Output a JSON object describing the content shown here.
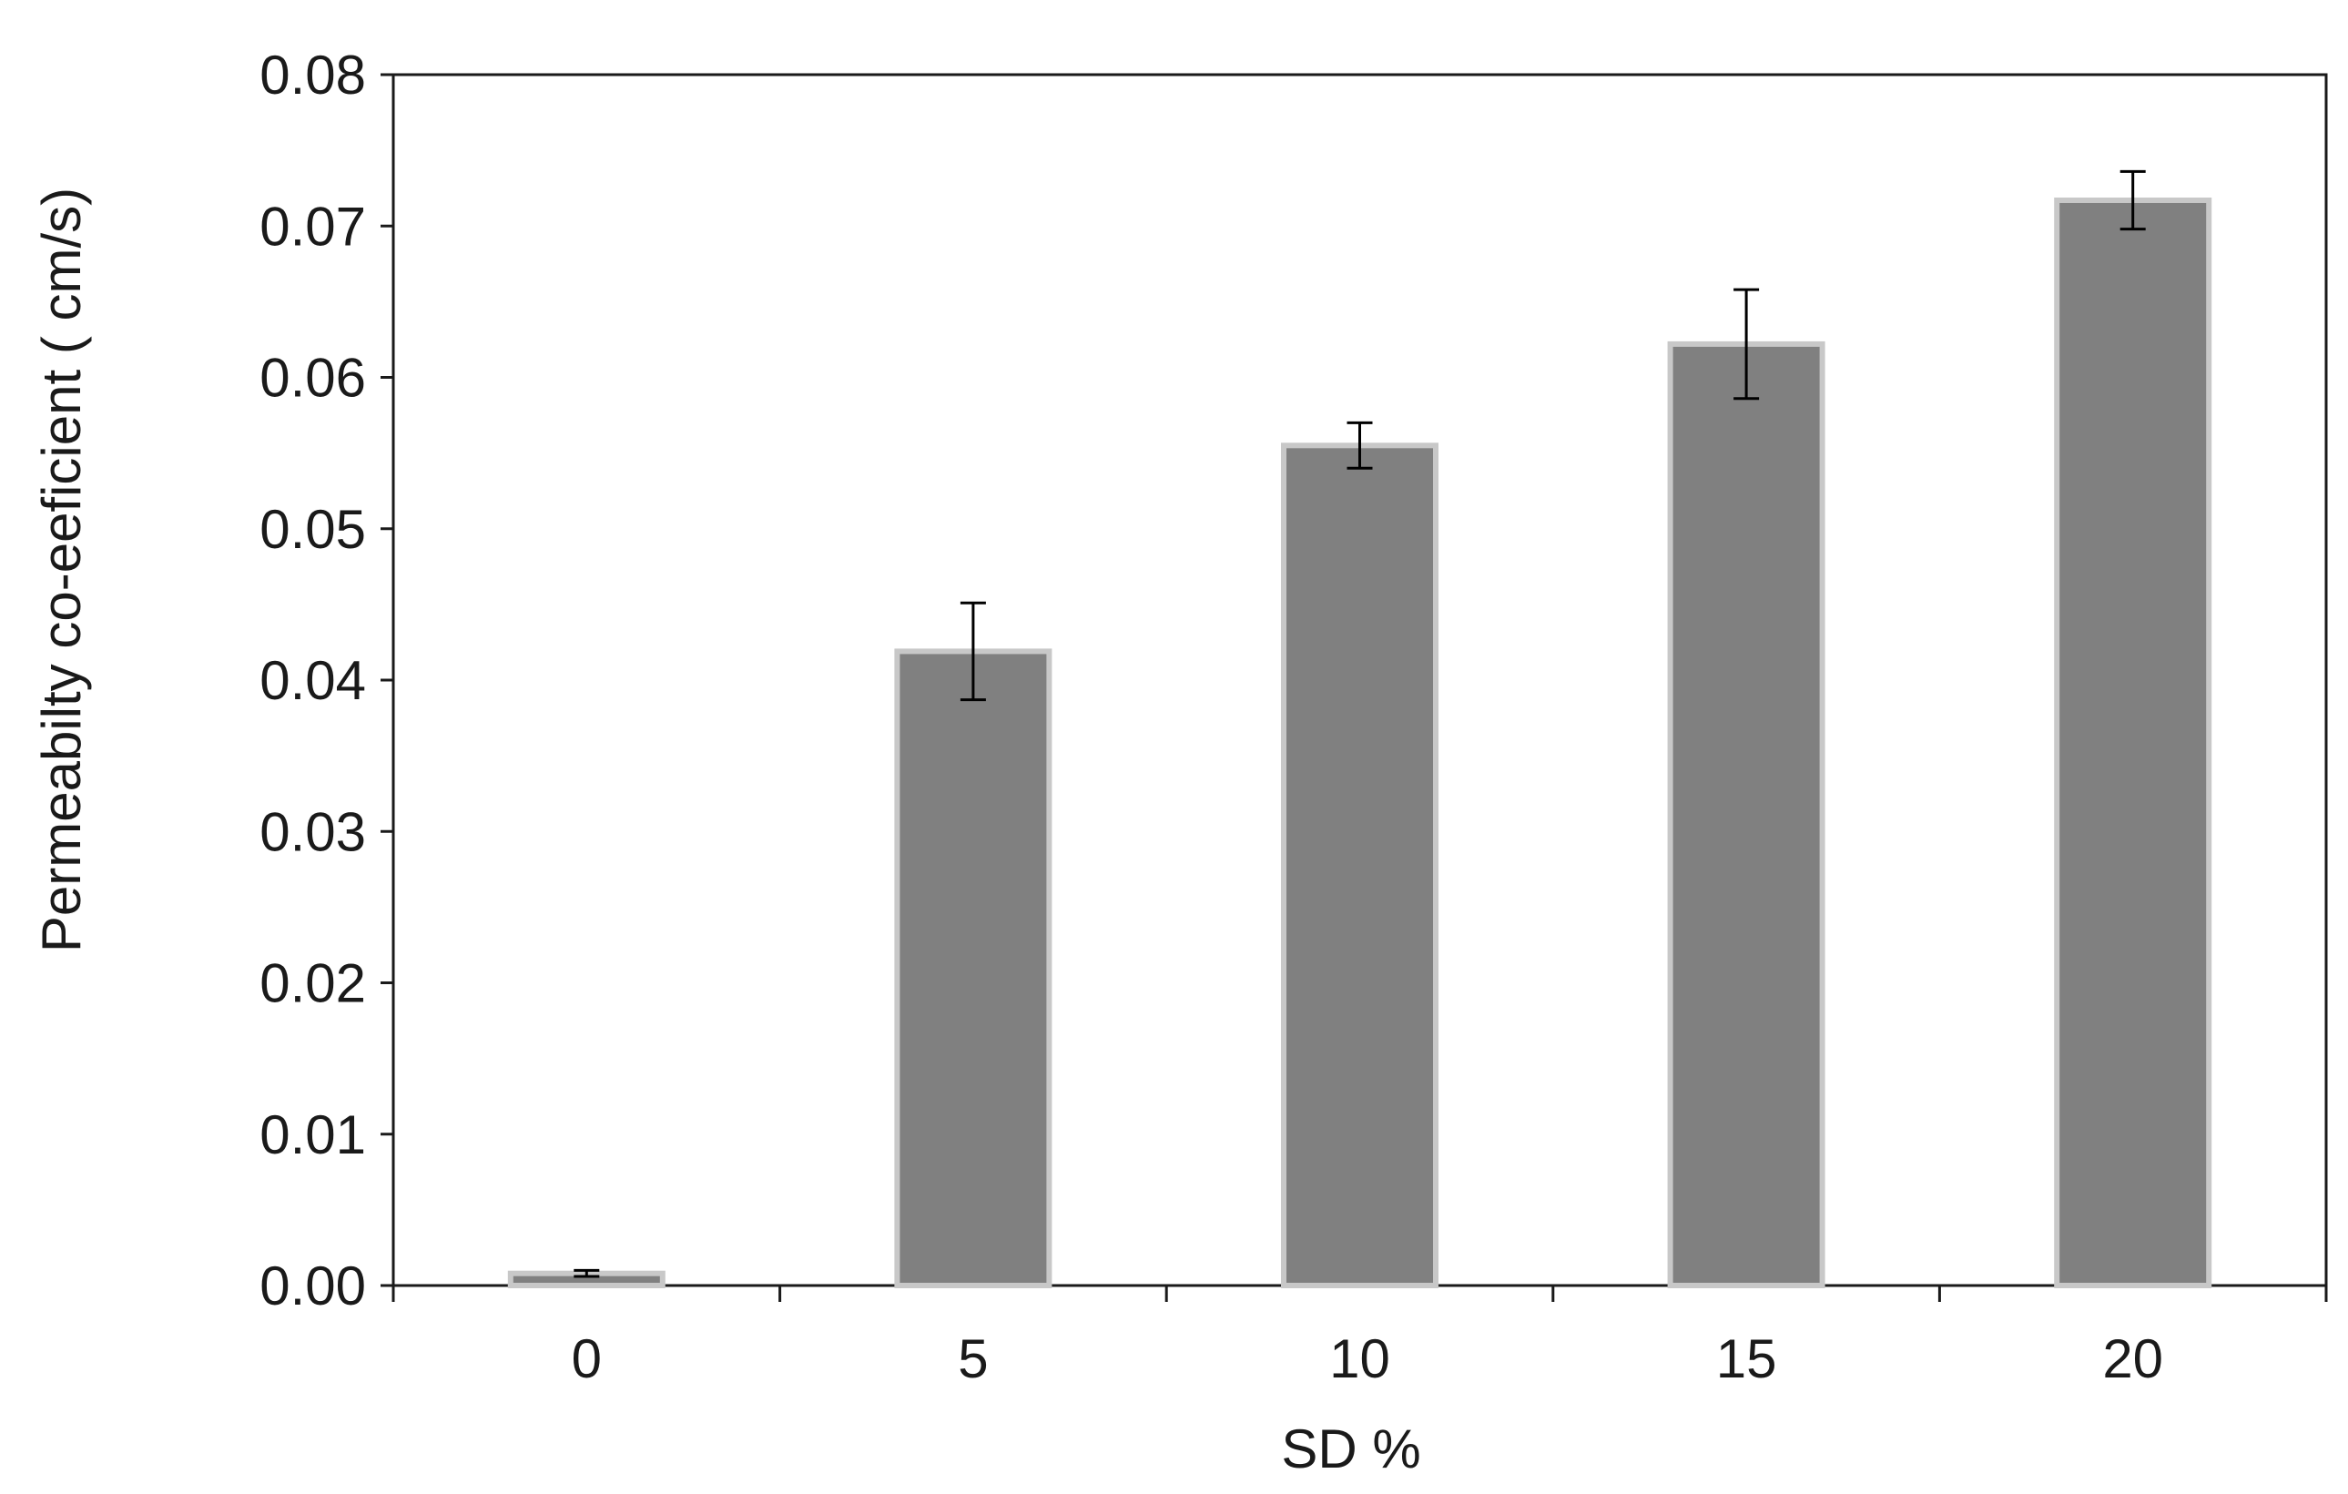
{
  "chart_data": {
    "type": "bar",
    "title": "",
    "xlabel": "SD %",
    "ylabel": "Permeabilty  co-eeficient ( cm/s)",
    "categories": [
      "0",
      "5",
      "10",
      "15",
      "20"
    ],
    "values": [
      0.0008,
      0.0419,
      0.0555,
      0.0622,
      0.0717
    ],
    "errors": [
      0.0002,
      0.0032,
      0.0015,
      0.0036,
      0.0019
    ],
    "ylim": [
      0,
      0.08
    ],
    "yticks": [
      "0.00",
      "0.01",
      "0.02",
      "0.03",
      "0.04",
      "0.05",
      "0.06",
      "0.07",
      "0.08"
    ],
    "grid": false,
    "legend": "none",
    "colors": {
      "bar_fill": "#808080",
      "bar_edge": "#c8c8c8",
      "axis": "#1a1a1a",
      "error_bar": "#000000"
    }
  }
}
